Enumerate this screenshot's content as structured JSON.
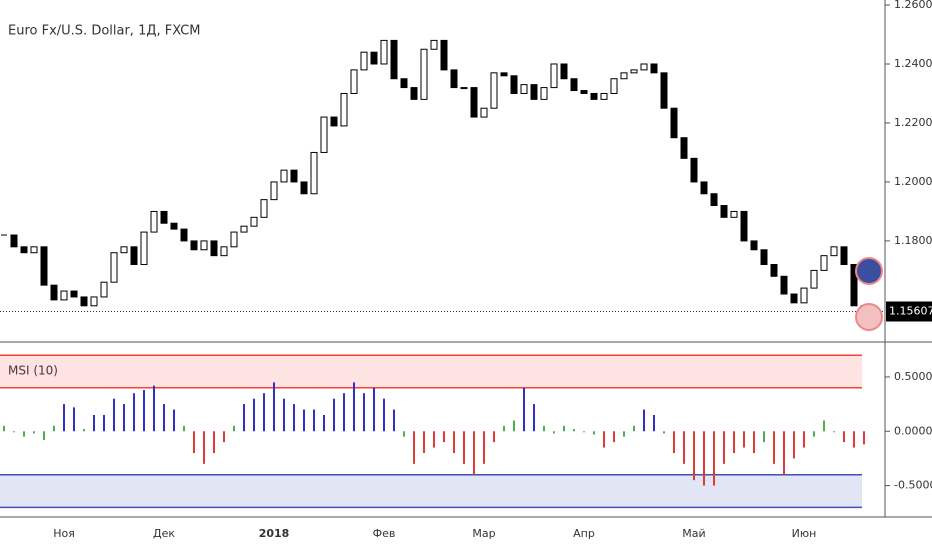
{
  "chart_data": [
    {
      "type": "candlestick",
      "title": "Euro Fx/U.S. Dollar, 1Д, FXCM",
      "categories": [
        null,
        null,
        null,
        null,
        null,
        null,
        "Ноя",
        null,
        null,
        null,
        null,
        null,
        null,
        null,
        null,
        null,
        "Дек",
        null,
        null,
        null,
        null,
        null,
        null,
        null,
        null,
        null,
        null,
        "2018",
        null,
        null,
        null,
        null,
        null,
        null,
        null,
        null,
        null,
        null,
        "Фев",
        null,
        null,
        null,
        null,
        null,
        null,
        null,
        null,
        null,
        "Мар",
        null,
        null,
        null,
        null,
        null,
        null,
        null,
        null,
        null,
        "Апр",
        null,
        null,
        null,
        null,
        null,
        null,
        null,
        null,
        null,
        null,
        "Май",
        null,
        null,
        null,
        null,
        null,
        null,
        null,
        null,
        null,
        null,
        "Июн",
        null,
        null,
        null,
        null,
        null,
        null
      ],
      "values": [
        1.182,
        1.178,
        1.176,
        1.178,
        1.165,
        1.16,
        1.163,
        1.161,
        1.158,
        1.161,
        1.166,
        1.176,
        1.178,
        1.172,
        1.183,
        1.19,
        1.186,
        1.184,
        1.18,
        1.177,
        1.18,
        1.175,
        1.178,
        1.183,
        1.185,
        1.188,
        1.194,
        1.2,
        1.204,
        1.2,
        1.196,
        1.21,
        1.222,
        1.219,
        1.23,
        1.238,
        1.244,
        1.24,
        1.248,
        1.235,
        1.232,
        1.228,
        1.245,
        1.248,
        1.238,
        1.232,
        1.232,
        1.222,
        1.225,
        1.237,
        1.236,
        1.23,
        1.233,
        1.228,
        1.232,
        1.24,
        1.235,
        1.231,
        1.23,
        1.228,
        1.23,
        1.235,
        1.237,
        1.238,
        1.24,
        1.237,
        1.225,
        1.215,
        1.208,
        1.2,
        1.196,
        1.192,
        1.188,
        1.19,
        1.18,
        1.177,
        1.172,
        1.168,
        1.162,
        1.159,
        1.164,
        1.17,
        1.175,
        1.178,
        1.172,
        1.158,
        1.15607
      ],
      "up_color": "#ffffff",
      "down_color": "#000000",
      "ylim": [
        1.1464,
        1.2617
      ],
      "yticks": [
        {
          "value": 1.18,
          "label": "1.18000"
        },
        {
          "value": 1.2,
          "label": "1.20000"
        },
        {
          "value": 1.22,
          "label": "1.22000"
        },
        {
          "value": 1.24,
          "label": "1.24000"
        },
        {
          "value": 1.26,
          "label": "1.26000"
        }
      ],
      "grid": false
    },
    {
      "type": "histogram-oscillator",
      "title": "MSI (10)",
      "values": [
        0.05,
        0,
        -0.05,
        -0.02,
        -0.08,
        0.05,
        0.25,
        0.22,
        0.02,
        0.15,
        0.15,
        0.3,
        0.25,
        0.35,
        0.38,
        0.42,
        0.25,
        0.2,
        0.05,
        -0.2,
        -0.3,
        -0.2,
        -0.1,
        0.05,
        0.25,
        0.3,
        0.35,
        0.45,
        0.3,
        0.25,
        0.2,
        0.2,
        0.15,
        0.3,
        0.35,
        0.45,
        0.35,
        0.4,
        0.3,
        0.2,
        -0.05,
        -0.3,
        -0.2,
        -0.15,
        -0.1,
        -0.2,
        -0.3,
        -0.4,
        -0.3,
        -0.1,
        0.05,
        0.1,
        0.4,
        0.25,
        0.05,
        -0.02,
        0.05,
        0.02,
        0,
        -0.03,
        -0.15,
        -0.1,
        -0.05,
        0.05,
        0.2,
        0.15,
        -0.02,
        -0.2,
        -0.3,
        -0.45,
        -0.5,
        -0.5,
        -0.3,
        -0.2,
        -0.15,
        -0.2,
        -0.1,
        -0.3,
        -0.4,
        -0.25,
        -0.15,
        -0.05,
        0.1,
        0,
        -0.1,
        -0.15,
        -0.12
      ],
      "colors": [
        "#4caf50",
        "#4caf50",
        "#4caf50",
        "#4caf50",
        "#4caf50",
        "#4caf50",
        "#3030c8",
        "#3030c8",
        "#4caf50",
        "#3030c8",
        "#3030c8",
        "#3030c8",
        "#3030c8",
        "#3030c8",
        "#3030c8",
        "#3030c8",
        "#3030c8",
        "#3030c8",
        "#4caf50",
        "#e53935",
        "#e53935",
        "#e53935",
        "#e53935",
        "#4caf50",
        "#3030c8",
        "#3030c8",
        "#3030c8",
        "#3030c8",
        "#3030c8",
        "#3030c8",
        "#3030c8",
        "#3030c8",
        "#3030c8",
        "#3030c8",
        "#3030c8",
        "#3030c8",
        "#3030c8",
        "#3030c8",
        "#3030c8",
        "#3030c8",
        "#4caf50",
        "#e53935",
        "#e53935",
        "#e53935",
        "#e53935",
        "#e53935",
        "#e53935",
        "#e53935",
        "#e53935",
        "#e53935",
        "#4caf50",
        "#4caf50",
        "#3030c8",
        "#3030c8",
        "#4caf50",
        "#4caf50",
        "#4caf50",
        "#4caf50",
        "#4caf50",
        "#4caf50",
        "#e53935",
        "#e53935",
        "#4caf50",
        "#4caf50",
        "#3030c8",
        "#3030c8",
        "#4caf50",
        "#e53935",
        "#e53935",
        "#e53935",
        "#e53935",
        "#e53935",
        "#e53935",
        "#e53935",
        "#e53935",
        "#e53935",
        "#4caf50",
        "#e53935",
        "#e53935",
        "#e53935",
        "#e53935",
        "#4caf50",
        "#4caf50",
        "#4caf50",
        "#e53935",
        "#e53935",
        "#e53935"
      ],
      "upper_band": {
        "range": [
          0.4,
          0.7
        ],
        "color": "#f44336"
      },
      "lower_band": {
        "range": [
          -0.7,
          -0.4
        ],
        "color": "#3f51b5"
      },
      "ylim": [
        -0.789,
        0.794
      ],
      "yticks": [
        {
          "value": -0.5,
          "label": "-0.5000"
        },
        {
          "value": 0,
          "label": "0.0000"
        },
        {
          "value": 0.5,
          "label": "0.5000"
        }
      ]
    }
  ]
}
